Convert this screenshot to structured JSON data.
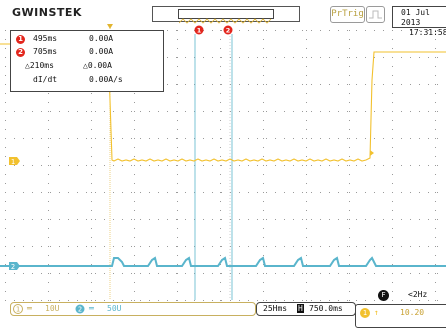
{
  "brand": {
    "logo_text": "GWINSTEK"
  },
  "header": {
    "trigger_mode_label": "PrTrig",
    "trigger_edge_icon": "rising-edge-icon",
    "date": "01 Jul 2013",
    "time": "17:31:58"
  },
  "measurements": {
    "cursor1": {
      "marker": "1",
      "time": "495ms",
      "value": "0.00A"
    },
    "cursor2": {
      "marker": "2",
      "time": "705ms",
      "value": "0.00A"
    },
    "delta": {
      "time": "△210ms",
      "value": "△0.00A"
    },
    "rate": {
      "label": "dI/dt",
      "value": "0.00A/s"
    }
  },
  "cursor_markers": [
    "1",
    "2"
  ],
  "channels": {
    "ch1": {
      "marker": "1",
      "color": "#f2c12e",
      "scale": "10U"
    },
    "ch2": {
      "marker": "2",
      "color": "#5ab5cc",
      "scale": "50U"
    }
  },
  "status": {
    "timebase": "25Hms",
    "horizontal_position": "750.0ms",
    "horizontal_icon": "H",
    "frequency_icon": "F",
    "frequency": "<2Hz",
    "trigger_marker": "1",
    "trigger_level": "10.20"
  },
  "icons": [
    "trigger-marker-icon",
    "ground-marker-icon",
    "rising-edge-icon"
  ]
}
